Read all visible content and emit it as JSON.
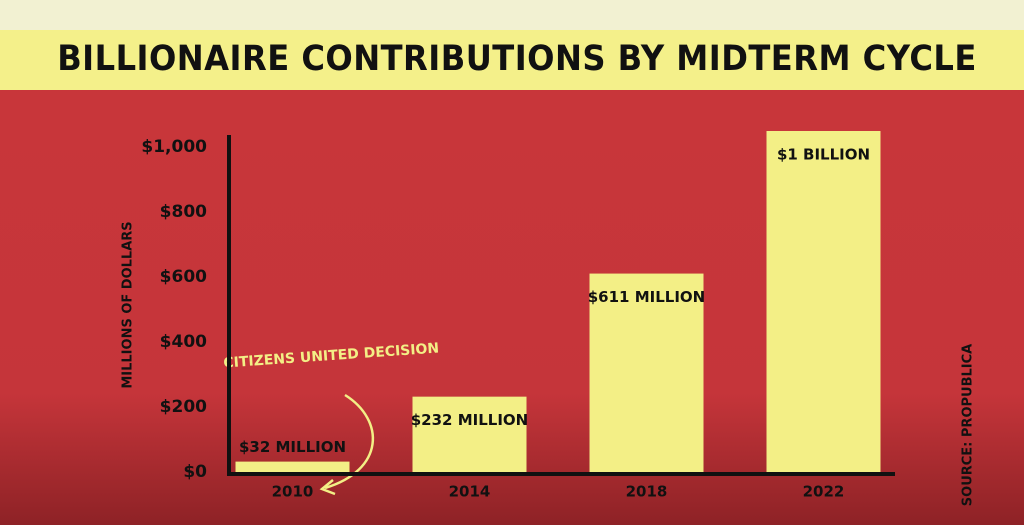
{
  "chart_data": {
    "type": "bar",
    "title": "BILLIONAIRE CONTRIBUTIONS BY MIDTERM CYCLE",
    "y_label": "MILLIONS OF DOLLARS",
    "annotation": "CITIZENS UNITED DECISION",
    "source": "SOURCE: PROPUBLICA",
    "categories": [
      "2010",
      "2014",
      "2018",
      "2022"
    ],
    "values": [
      32,
      232,
      611,
      1050
    ],
    "value_labels": [
      "$32 MILLION",
      "$232 MILLION",
      "$611 MILLION",
      "$1 BILLION"
    ],
    "color": "#f3ef86",
    "ylim": [
      0,
      1050
    ],
    "yticks": [
      {
        "value": 0,
        "label": "$0"
      },
      {
        "value": 200,
        "label": "$200"
      },
      {
        "value": 400,
        "label": "$400"
      },
      {
        "value": 600,
        "label": "$600"
      },
      {
        "value": 800,
        "label": "$800"
      },
      {
        "value": 1000,
        "label": "$1,000"
      }
    ]
  }
}
